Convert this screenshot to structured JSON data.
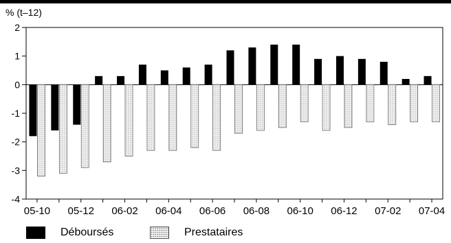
{
  "unit_label": "% (t–12)",
  "colors": {
    "debourses": "#000000",
    "prestataires_fill": "#f2f2f2",
    "prestataires_dots": "#6a6a6a"
  },
  "chart_data": {
    "type": "bar",
    "title": "",
    "xlabel": "",
    "ylabel": "% (t–12)",
    "ylim": [
      -4,
      2
    ],
    "yticks": [
      2,
      1,
      0,
      -1,
      -2,
      -3,
      -4
    ],
    "categories": [
      "05-10",
      "05-11",
      "05-12",
      "06-01",
      "06-02",
      "06-03",
      "06-04",
      "06-05",
      "06-06",
      "06-07",
      "06-08",
      "06-09",
      "06-10",
      "06-11",
      "06-12",
      "07-01",
      "07-02",
      "07-03",
      "07-04"
    ],
    "xtick_labels": [
      "05-10",
      "05-12",
      "06-02",
      "06-04",
      "06-06",
      "06-08",
      "06-10",
      "06-12",
      "07-02",
      "07-04"
    ],
    "series": [
      {
        "name": "Déboursés",
        "values": [
          -1.8,
          -1.6,
          -1.4,
          0.3,
          0.3,
          0.7,
          0.5,
          0.6,
          0.7,
          1.2,
          1.3,
          1.4,
          1.4,
          0.9,
          1.0,
          0.9,
          0.8,
          0.2,
          0.3
        ]
      },
      {
        "name": "Prestataires",
        "values": [
          -3.2,
          -3.1,
          -2.9,
          -2.7,
          -2.5,
          -2.3,
          -2.3,
          -2.2,
          -2.3,
          -1.7,
          -1.6,
          -1.5,
          -1.3,
          -1.6,
          -1.5,
          -1.3,
          -1.4,
          -1.3,
          -1.3
        ]
      }
    ],
    "grid": false,
    "legend_position": "bottom-left"
  },
  "legend": [
    {
      "label": "Déboursés"
    },
    {
      "label": "Prestataires"
    }
  ]
}
